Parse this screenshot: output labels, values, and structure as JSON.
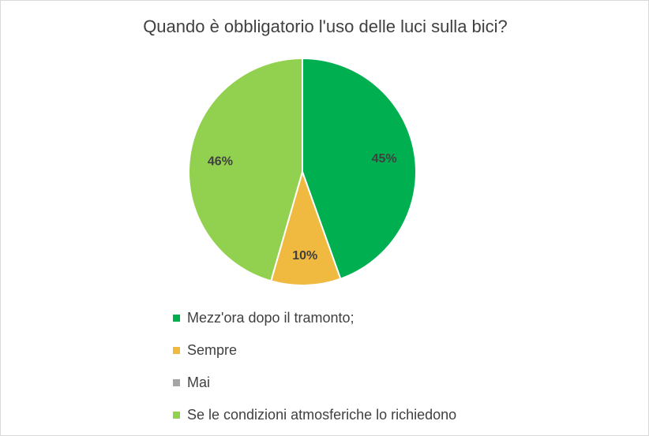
{
  "chart_data": {
    "type": "pie",
    "title": "Quando è obbligatorio l'uso delle luci sulla bici?",
    "categories": [
      "Mezz'ora dopo il tramonto;",
      "Sempre",
      "Mai",
      "Se le condizioni atmosferiche lo richiedono"
    ],
    "values": [
      45,
      10,
      0,
      46
    ],
    "data_labels": [
      "45%",
      "10%",
      "",
      "46%"
    ],
    "colors": [
      "#00b050",
      "#f0b940",
      "#a5a5a5",
      "#92d050"
    ],
    "legend_position": "bottom",
    "start_angle": "12 o'clock, clockwise"
  }
}
